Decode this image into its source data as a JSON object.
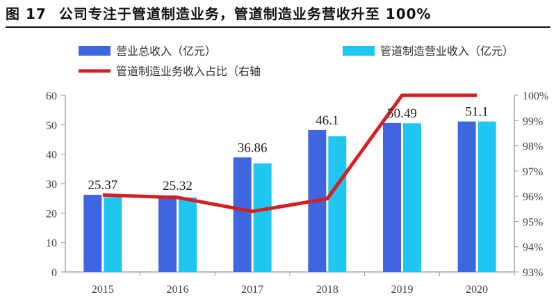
{
  "figure": {
    "label": "图",
    "number": "17",
    "caption": "公司专注于管道制造业务，管道制造业务营收升至 100%"
  },
  "colors": {
    "total_revenue": "#3F66E0",
    "pipe_revenue": "#1FC6F0",
    "pipe_share": "#D32020",
    "axis": "#A6A6A6",
    "text": "#404040"
  },
  "chart_data": {
    "type": "bar",
    "categories": [
      "2015",
      "2016",
      "2017",
      "2018",
      "2019",
      "2020"
    ],
    "series": [
      {
        "name": "营业总收入（亿元）",
        "kind": "bar",
        "axis": "left",
        "values": [
          26.2,
          26.0,
          38.9,
          48.2,
          50.6,
          51.1
        ]
      },
      {
        "name": "管道制造营业收入（亿元）",
        "kind": "bar",
        "axis": "left",
        "values": [
          25.37,
          25.32,
          36.86,
          46.1,
          50.49,
          51.1
        ]
      },
      {
        "name": "管道制造业务收入占比（右轴",
        "kind": "line",
        "axis": "right",
        "values": [
          96.05,
          95.95,
          95.4,
          95.9,
          100.0,
          100.0
        ]
      }
    ],
    "data_labels": [
      "25.37",
      "25.32",
      "36.86",
      "46.1",
      "50.49",
      "51.1"
    ],
    "left_axis": {
      "min": 0,
      "max": 60,
      "ticks": [
        "0",
        "10",
        "20",
        "30",
        "40",
        "50",
        "60"
      ]
    },
    "right_axis": {
      "min": 93,
      "max": 100,
      "ticks": [
        "93%",
        "94%",
        "95%",
        "96%",
        "97%",
        "98%",
        "99%",
        "100%"
      ]
    },
    "legend_position": "top",
    "grid": false
  }
}
